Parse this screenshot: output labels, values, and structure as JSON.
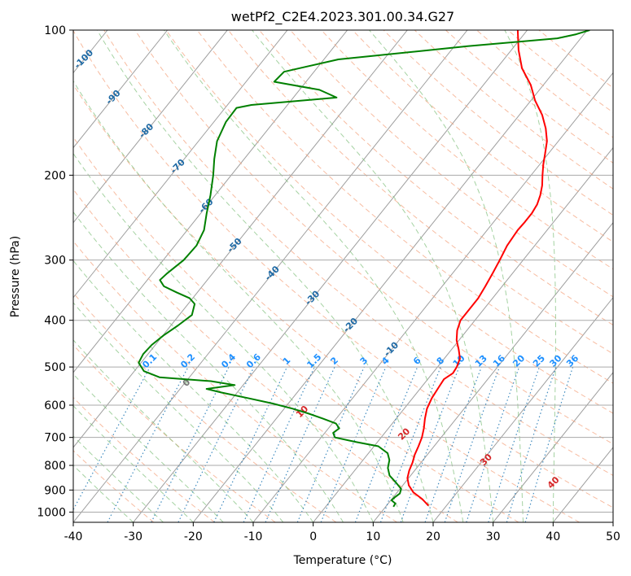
{
  "chart_data": {
    "type": "line",
    "title": "wetPf2_C2E4.2023.301.00.34.G27",
    "xlabel": "Temperature (°C)",
    "ylabel": "Pressure (hPa)",
    "xlim": [
      -40,
      50
    ],
    "ylim": [
      1050,
      100
    ],
    "y_scale": "log",
    "grid": true,
    "x_ticks": [
      -40,
      -30,
      -20,
      -10,
      0,
      10,
      20,
      30,
      40,
      50
    ],
    "y_ticks": [
      100,
      200,
      300,
      400,
      500,
      600,
      700,
      800,
      900,
      1000
    ],
    "skew_slope": 0.8,
    "series": [
      {
        "color": "#ff0000",
        "points": [
          [
            970,
            17
          ],
          [
            940,
            15.1
          ],
          [
            910,
            12.7
          ],
          [
            880,
            11
          ],
          [
            850,
            9.8
          ],
          [
            820,
            9.1
          ],
          [
            790,
            8.6
          ],
          [
            760,
            7.9
          ],
          [
            730,
            7.4
          ],
          [
            700,
            6.8
          ],
          [
            670,
            5.9
          ],
          [
            640,
            4.8
          ],
          [
            610,
            3.8
          ],
          [
            580,
            3.2
          ],
          [
            550,
            2.9
          ],
          [
            530,
            2.7
          ],
          [
            515,
            3.4
          ],
          [
            500,
            3.2
          ],
          [
            480,
            2.6
          ],
          [
            460,
            1.2
          ],
          [
            440,
            -0.4
          ],
          [
            420,
            -1.6
          ],
          [
            400,
            -2.4
          ],
          [
            380,
            -2.4
          ],
          [
            360,
            -2.4
          ],
          [
            340,
            -2.8
          ],
          [
            320,
            -3.3
          ],
          [
            300,
            -3.9
          ],
          [
            280,
            -4.6
          ],
          [
            260,
            -4.9
          ],
          [
            250,
            -4.8
          ],
          [
            240,
            -4.8
          ],
          [
            230,
            -5.1
          ],
          [
            220,
            -5.8
          ],
          [
            210,
            -6.8
          ],
          [
            200,
            -8.1
          ],
          [
            190,
            -9.4
          ],
          [
            180,
            -10.6
          ],
          [
            170,
            -11.9
          ],
          [
            160,
            -13.8
          ],
          [
            150,
            -16.2
          ],
          [
            140,
            -19.3
          ],
          [
            130,
            -22.1
          ],
          [
            120,
            -25.8
          ],
          [
            110,
            -28.8
          ],
          [
            100,
            -31.6
          ]
        ]
      },
      {
        "color": "#008000",
        "points": [
          [
            975,
            11.3
          ],
          [
            960,
            11.2
          ],
          [
            945,
            10.1
          ],
          [
            930,
            10.3
          ],
          [
            915,
            10.6
          ],
          [
            895,
            10.2
          ],
          [
            870,
            8.6
          ],
          [
            840,
            6.5
          ],
          [
            810,
            5.2
          ],
          [
            780,
            4.4
          ],
          [
            755,
            3.2
          ],
          [
            730,
            0.7
          ],
          [
            715,
            -3.7
          ],
          [
            700,
            -7.7
          ],
          [
            685,
            -8.6
          ],
          [
            670,
            -8.2
          ],
          [
            655,
            -9.4
          ],
          [
            640,
            -12.2
          ],
          [
            625,
            -15.2
          ],
          [
            610,
            -18.6
          ],
          [
            595,
            -22.7
          ],
          [
            580,
            -27.5
          ],
          [
            565,
            -32.6
          ],
          [
            555,
            -35.6
          ],
          [
            545,
            -31.4
          ],
          [
            535,
            -35.9
          ],
          [
            525,
            -45
          ],
          [
            510,
            -48.4
          ],
          [
            490,
            -50.4
          ],
          [
            470,
            -50.8
          ],
          [
            450,
            -50.6
          ],
          [
            430,
            -49.9
          ],
          [
            410,
            -48.8
          ],
          [
            390,
            -47.9
          ],
          [
            370,
            -48.9
          ],
          [
            360,
            -50.5
          ],
          [
            350,
            -53.5
          ],
          [
            340,
            -56.4
          ],
          [
            330,
            -57.9
          ],
          [
            320,
            -57.6
          ],
          [
            300,
            -56.6
          ],
          [
            280,
            -56.4
          ],
          [
            260,
            -57.2
          ],
          [
            240,
            -59
          ],
          [
            220,
            -60.8
          ],
          [
            200,
            -63
          ],
          [
            185,
            -65
          ],
          [
            170,
            -66.9
          ],
          [
            155,
            -68
          ],
          [
            145,
            -68.1
          ],
          [
            143,
            -66
          ],
          [
            138,
            -52.8
          ],
          [
            133,
            -56.7
          ],
          [
            128,
            -65.3
          ],
          [
            122,
            -65
          ],
          [
            115,
            -57.6
          ],
          [
            108,
            -37.8
          ],
          [
            104,
            -23.9
          ],
          [
            102,
            -21.3
          ],
          [
            100,
            -19.6
          ]
        ]
      }
    ],
    "dry_adiabat_labels": [
      "-100",
      "-90",
      "-80",
      "-70",
      "-60",
      "-50",
      "-40",
      "-30",
      "-20",
      "-10"
    ],
    "moist_adiabat_labels": [
      "0",
      "10",
      "20",
      "30",
      "40"
    ],
    "mixing_ratio_labels": [
      "0.1",
      "0.2",
      "0.4",
      "0.6",
      "1",
      "1.5",
      "2",
      "3",
      "4",
      "6",
      "8",
      "10",
      "13",
      "16",
      "20",
      "25",
      "30",
      "36"
    ]
  }
}
